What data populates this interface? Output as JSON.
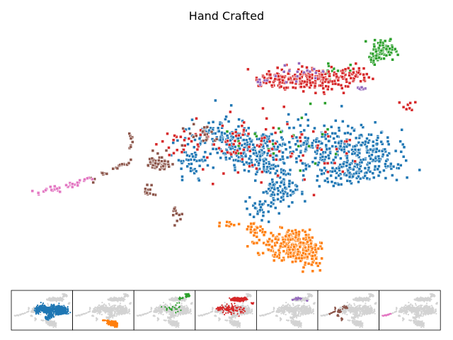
{
  "chart_data": {
    "type": "scatter",
    "title": "Hand Crafted",
    "xlabel": "",
    "ylabel": "",
    "axes_visible": false,
    "legend": "none",
    "background_point_color": "#d3d3d3",
    "marker_edge_color": "#ffffff",
    "clusters": [
      {
        "color": "#1f77b4",
        "shape": "blob",
        "centers": [
          [
            365,
            218
          ],
          [
            455,
            210
          ],
          [
            530,
            218
          ],
          [
            315,
            195
          ],
          [
            395,
            265
          ],
          [
            270,
            225
          ],
          [
            490,
            245
          ],
          [
            370,
            295
          ]
        ],
        "spread": [
          [
            45,
            30
          ],
          [
            55,
            38
          ],
          [
            38,
            30
          ],
          [
            38,
            25
          ],
          [
            32,
            22
          ],
          [
            22,
            22
          ],
          [
            30,
            18
          ],
          [
            20,
            18
          ]
        ],
        "counts": [
          180,
          230,
          150,
          110,
          80,
          50,
          60,
          30
        ]
      },
      {
        "color": "#ff7f0e",
        "shape": "blob",
        "centers": [
          [
            410,
            345
          ],
          [
            435,
            362
          ],
          [
            360,
            325
          ],
          [
            320,
            315
          ]
        ],
        "spread": [
          [
            35,
            20
          ],
          [
            22,
            18
          ],
          [
            12,
            8
          ],
          [
            10,
            6
          ]
        ],
        "counts": [
          230,
          90,
          25,
          10
        ]
      },
      {
        "color": "#2ca02c",
        "shape": "blob",
        "centers": [
          [
            545,
            70
          ],
          [
            528,
            82
          ],
          [
            470,
            100
          ],
          [
            360,
            210
          ],
          [
            440,
            180
          ]
        ],
        "spread": [
          [
            16,
            10
          ],
          [
            10,
            7
          ],
          [
            20,
            12
          ],
          [
            70,
            40
          ],
          [
            60,
            40
          ]
        ],
        "counts": [
          75,
          20,
          12,
          14,
          10
        ]
      },
      {
        "color": "#d62728",
        "shape": "blob",
        "centers": [
          [
            440,
            112
          ],
          [
            385,
            112
          ],
          [
            500,
            105
          ],
          [
            345,
            205
          ],
          [
            255,
            200
          ],
          [
            440,
            220
          ],
          [
            575,
            150
          ]
        ],
        "spread": [
          [
            55,
            14
          ],
          [
            22,
            12
          ],
          [
            20,
            8
          ],
          [
            70,
            40
          ],
          [
            30,
            20
          ],
          [
            70,
            35
          ],
          [
            15,
            6
          ]
        ],
        "counts": [
          230,
          45,
          30,
          70,
          20,
          30,
          8
        ]
      },
      {
        "color": "#9467bd",
        "shape": "blob",
        "centers": [
          [
            420,
            105
          ],
          [
            510,
            125
          ],
          [
            370,
            115
          ]
        ],
        "spread": [
          [
            30,
            12
          ],
          [
            12,
            4
          ],
          [
            10,
            6
          ]
        ],
        "counts": [
          16,
          8,
          6
        ]
      },
      {
        "color": "#8c564b",
        "shape": "mixed",
        "centers": [
          [
            225,
            230
          ],
          [
            285,
            190
          ],
          [
            250,
            300
          ],
          [
            210,
            270
          ]
        ],
        "spread": [
          [
            14,
            12
          ],
          [
            25,
            15
          ],
          [
            5,
            12
          ],
          [
            6,
            8
          ]
        ],
        "counts": [
          60,
          20,
          12,
          14
        ],
        "trail": [
          [
            130,
            256
          ],
          [
            160,
            238
          ],
          [
            190,
            226
          ],
          [
            183,
            188
          ]
        ],
        "trail_count": 30
      },
      {
        "color": "#e377c2",
        "shape": "trail",
        "trail": [
          [
            42,
            274
          ],
          [
            70,
            268
          ],
          [
            100,
            262
          ],
          [
            128,
            252
          ]
        ],
        "trail_count": 35
      }
    ]
  }
}
